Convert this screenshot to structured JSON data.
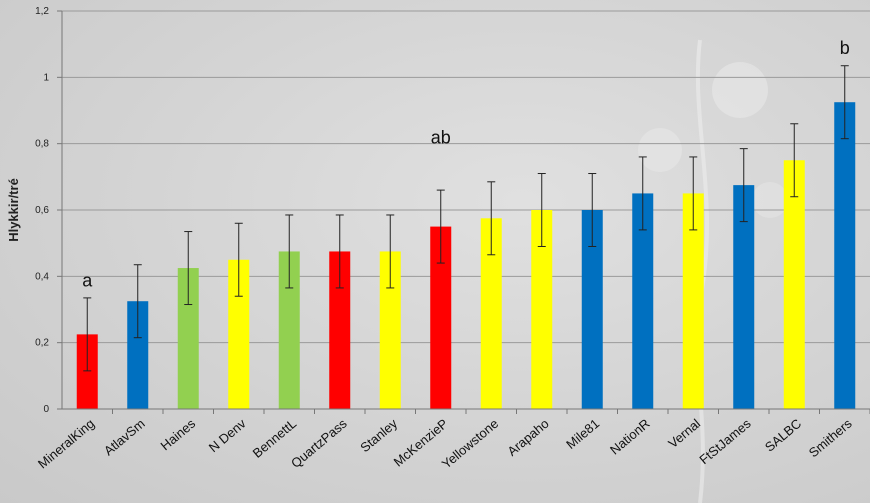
{
  "chart_data": {
    "type": "bar",
    "ylabel": "Hlykkir/tré",
    "xlabel": "",
    "title": "",
    "ylim": [
      0,
      1.2
    ],
    "yticks": [
      "0",
      "0,2",
      "0,4",
      "0,6",
      "0,8",
      "1",
      "1,2"
    ],
    "grid": true,
    "categories": [
      "MineralKing",
      "AtlavSm",
      "Haines",
      "N Denv",
      "BennettL",
      "QuartzPass",
      "Stanley",
      "McKenzieP",
      "Yellowstone",
      "Arapaho",
      "Mile81",
      "NationR",
      "Vernal",
      "FtStJames",
      "SALBC",
      "Smithers"
    ],
    "values": [
      0.225,
      0.325,
      0.425,
      0.45,
      0.475,
      0.475,
      0.475,
      0.55,
      0.575,
      0.6,
      0.6,
      0.65,
      0.65,
      0.675,
      0.75,
      0.925
    ],
    "errors": [
      0.11,
      0.11,
      0.11,
      0.11,
      0.11,
      0.11,
      0.11,
      0.11,
      0.11,
      0.11,
      0.11,
      0.11,
      0.11,
      0.11,
      0.11,
      0.11
    ],
    "colors": [
      "#ff0000",
      "#0070c0",
      "#92d050",
      "#ffff00",
      "#92d050",
      "#ff0000",
      "#ffff00",
      "#ff0000",
      "#ffff00",
      "#ffff00",
      "#0070c0",
      "#0070c0",
      "#ffff00",
      "#0070c0",
      "#ffff00",
      "#0070c0"
    ],
    "annotations": [
      {
        "text": "a",
        "category": 0,
        "y": 0.37
      },
      {
        "text": "ab",
        "category": 7,
        "y": 0.8
      },
      {
        "text": "b",
        "category": 15,
        "y": 1.07
      }
    ]
  }
}
